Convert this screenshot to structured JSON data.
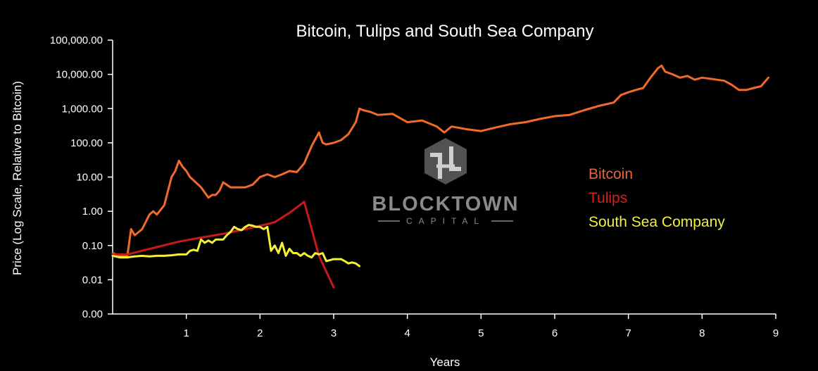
{
  "chart_data": {
    "type": "line",
    "title": "Bitcoin, Tulips and South Sea Company",
    "xlabel": "Years",
    "ylabel": "Price (Log Scale, Relative to Bitcoin)",
    "y_scale": "log",
    "xlim": [
      0,
      9
    ],
    "ylim": [
      0.001,
      100000
    ],
    "x_ticks": [
      1,
      2,
      3,
      4,
      5,
      6,
      7,
      8,
      9
    ],
    "x_tick_labels": [
      "1",
      "2",
      "3",
      "4",
      "5",
      "6",
      "7",
      "8",
      "9"
    ],
    "y_ticks": [
      0.001,
      0.01,
      0.1,
      1,
      10,
      100,
      1000,
      10000,
      100000
    ],
    "y_tick_labels": [
      "0.00",
      "0.01",
      "0.10",
      "1.00",
      "10.00",
      "100.00",
      "1,000.00",
      "10,000.00",
      "100,000.00"
    ],
    "grid": false,
    "legend_position": "right",
    "series": [
      {
        "name": "Bitcoin",
        "color": "#f26a2a",
        "legend_color": "#e8643c",
        "x": [
          0,
          0.1,
          0.2,
          0.25,
          0.3,
          0.4,
          0.5,
          0.55,
          0.6,
          0.7,
          0.8,
          0.85,
          0.9,
          0.95,
          1.0,
          1.05,
          1.1,
          1.2,
          1.3,
          1.35,
          1.4,
          1.45,
          1.5,
          1.6,
          1.7,
          1.8,
          1.9,
          2.0,
          2.1,
          2.2,
          2.3,
          2.4,
          2.5,
          2.6,
          2.7,
          2.8,
          2.85,
          2.9,
          3.0,
          3.1,
          3.2,
          3.3,
          3.35,
          3.4,
          3.5,
          3.6,
          3.8,
          4.0,
          4.2,
          4.4,
          4.5,
          4.6,
          4.8,
          5.0,
          5.2,
          5.4,
          5.6,
          5.8,
          6.0,
          6.2,
          6.4,
          6.6,
          6.8,
          6.9,
          7.0,
          7.1,
          7.2,
          7.3,
          7.4,
          7.45,
          7.5,
          7.6,
          7.7,
          7.8,
          7.9,
          8.0,
          8.2,
          8.3,
          8.4,
          8.5,
          8.6,
          8.7,
          8.8,
          8.9
        ],
        "values": [
          0.06,
          0.05,
          0.05,
          0.3,
          0.2,
          0.3,
          0.8,
          1.0,
          0.8,
          1.5,
          10,
          15,
          30,
          20,
          15,
          10,
          8,
          5,
          2.5,
          3,
          3,
          4,
          7,
          5,
          5,
          5,
          6,
          10,
          12,
          10,
          12,
          15,
          14,
          25,
          80,
          200,
          100,
          90,
          100,
          120,
          180,
          400,
          1000,
          900,
          800,
          650,
          700,
          400,
          450,
          300,
          200,
          300,
          250,
          220,
          280,
          350,
          400,
          500,
          600,
          650,
          900,
          1200,
          1500,
          2500,
          3000,
          3500,
          4000,
          8000,
          15000,
          18000,
          12000,
          10000,
          8000,
          9000,
          7000,
          8000,
          7000,
          6500,
          5000,
          3500,
          3500,
          4000,
          4500,
          8000
        ]
      },
      {
        "name": "Tulips",
        "color": "#c61a1a",
        "legend_color": "#d42020",
        "x": [
          0,
          0.2,
          0.6,
          0.9,
          1.2,
          1.5,
          1.8,
          2.1,
          2.2,
          2.4,
          2.6,
          2.8,
          3.0
        ],
        "values": [
          0.055,
          0.055,
          0.09,
          0.13,
          0.17,
          0.22,
          0.3,
          0.42,
          0.48,
          0.9,
          1.9,
          0.05,
          0.006
        ]
      },
      {
        "name": "South Sea Company",
        "color": "#f7f034",
        "legend_color": "#f4ef3a",
        "x": [
          0,
          0.1,
          0.2,
          0.3,
          0.4,
          0.5,
          0.6,
          0.7,
          0.8,
          0.9,
          0.95,
          1.0,
          1.05,
          1.1,
          1.15,
          1.2,
          1.25,
          1.3,
          1.35,
          1.4,
          1.45,
          1.5,
          1.55,
          1.6,
          1.65,
          1.7,
          1.75,
          1.8,
          1.85,
          1.9,
          1.95,
          2.0,
          2.05,
          2.1,
          2.15,
          2.2,
          2.25,
          2.3,
          2.35,
          2.4,
          2.45,
          2.5,
          2.55,
          2.6,
          2.65,
          2.7,
          2.75,
          2.8,
          2.85,
          2.9,
          3.0,
          3.1,
          3.15,
          3.2,
          3.25,
          3.3,
          3.35
        ],
        "values": [
          0.05,
          0.045,
          0.045,
          0.048,
          0.05,
          0.048,
          0.05,
          0.05,
          0.052,
          0.055,
          0.055,
          0.055,
          0.07,
          0.075,
          0.07,
          0.15,
          0.12,
          0.14,
          0.12,
          0.15,
          0.15,
          0.15,
          0.2,
          0.25,
          0.35,
          0.3,
          0.28,
          0.35,
          0.4,
          0.38,
          0.35,
          0.35,
          0.3,
          0.35,
          0.07,
          0.1,
          0.06,
          0.12,
          0.05,
          0.08,
          0.06,
          0.06,
          0.05,
          0.06,
          0.05,
          0.045,
          0.06,
          0.055,
          0.06,
          0.035,
          0.04,
          0.04,
          0.035,
          0.03,
          0.032,
          0.03,
          0.025
        ]
      }
    ]
  },
  "watermark": {
    "name": "BLOCKTOWN",
    "subtitle": "CAPITAL",
    "color": "#8a8a8a"
  },
  "icons": {
    "watermark_logo": "blocktown-btc-cube-logo"
  },
  "colors": {
    "background": "#000000",
    "text": "#ffffff",
    "axis": "#ffffff"
  }
}
